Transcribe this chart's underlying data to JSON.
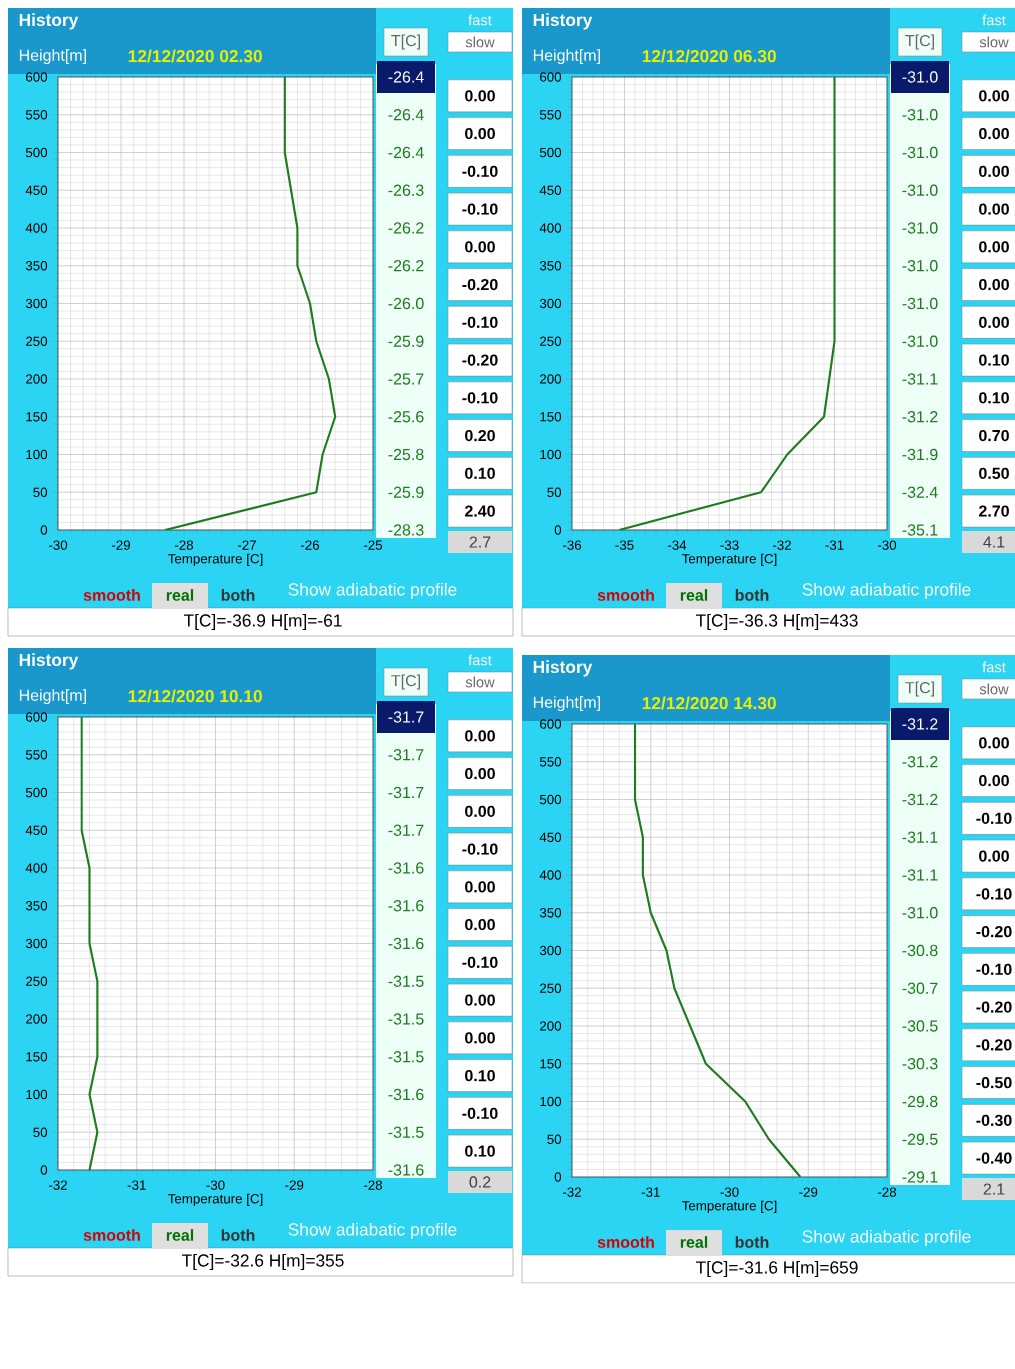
{
  "chart_data": [
    {
      "type": "line",
      "title": "History",
      "subtitle": "12/12/2020 02.30",
      "xlabel": "Temperature [C]",
      "ylabel": "Height[m]",
      "xlim": [
        -30,
        -25
      ],
      "ylim": [
        0,
        600
      ],
      "xticks": [
        -30,
        -29,
        -28,
        -27,
        -26,
        -25
      ],
      "yticks": [
        0,
        50,
        100,
        150,
        200,
        250,
        300,
        350,
        400,
        450,
        500,
        550,
        600
      ],
      "grid": true,
      "series": [
        {
          "color": "#1e7b1e",
          "x": [
            -28.3,
            -25.9,
            -25.8,
            -25.6,
            -25.7,
            -25.9,
            -26.0,
            -26.2,
            -26.2,
            -26.3,
            -26.4,
            -26.4,
            -26.4
          ],
          "values": [
            0,
            50,
            100,
            150,
            200,
            250,
            300,
            350,
            400,
            450,
            500,
            550,
            600
          ]
        }
      ],
      "annotations": [
        "T[C]",
        "fast",
        "slow",
        "0.00",
        "0.00",
        "-0.10",
        "-0.10",
        "0.00",
        "-0.20",
        "-0.10",
        "-0.20",
        "-0.10",
        "0.20",
        "0.10",
        "2.40",
        "2.7",
        "smooth",
        "real",
        "both",
        "Show adiabatic profile",
        "T[C]=-36.9 H[m]=-61",
        "-26.4",
        "-26.4",
        "-26.4",
        "-26.3",
        "-26.2",
        "-26.2",
        "-26.0",
        "-25.9",
        "-25.7",
        "-25.6",
        "-25.8",
        "-25.9",
        "-28.3"
      ]
    },
    {
      "type": "line",
      "title": "History",
      "subtitle": "12/12/2020 06.30",
      "xlabel": "Temperature [C]",
      "ylabel": "Height[m]",
      "xlim": [
        -36,
        -30
      ],
      "ylim": [
        0,
        600
      ],
      "xticks": [
        -36,
        -35,
        -34,
        -33,
        -32,
        -31,
        -30
      ],
      "yticks": [
        0,
        50,
        100,
        150,
        200,
        250,
        300,
        350,
        400,
        450,
        500,
        550,
        600
      ],
      "grid": true,
      "series": [
        {
          "color": "#1e7b1e",
          "x": [
            -35.1,
            -32.4,
            -31.9,
            -31.2,
            -31.1,
            -31.0,
            -31.0,
            -31.0,
            -31.0,
            -31.0,
            -31.0,
            -31.0,
            -31.0
          ],
          "values": [
            0,
            50,
            100,
            150,
            200,
            250,
            300,
            350,
            400,
            450,
            500,
            550,
            600
          ]
        }
      ],
      "annotations": [
        "T[C]",
        "fast",
        "slow",
        "0.00",
        "0.00",
        "0.00",
        "0.00",
        "0.00",
        "0.00",
        "0.00",
        "0.10",
        "0.10",
        "0.70",
        "0.50",
        "2.70",
        "4.1",
        "smooth",
        "real",
        "both",
        "Show adiabatic profile",
        "T[C]=-36.3 H[m]=433",
        "-31.0",
        "-31.0",
        "-31.0",
        "-31.0",
        "-31.0",
        "-31.0",
        "-31.0",
        "-31.0",
        "-31.1",
        "-31.2",
        "-31.9",
        "-32.4",
        "-35.1"
      ]
    },
    {
      "type": "line",
      "title": "History",
      "subtitle": "12/12/2020 10.10",
      "xlabel": "Temperature [C]",
      "ylabel": "Height[m]",
      "xlim": [
        -32,
        -28
      ],
      "ylim": [
        0,
        600
      ],
      "xticks": [
        -32,
        -31,
        -30,
        -29,
        -28
      ],
      "yticks": [
        0,
        50,
        100,
        150,
        200,
        250,
        300,
        350,
        400,
        450,
        500,
        550,
        600
      ],
      "grid": true,
      "series": [
        {
          "color": "#1e7b1e",
          "x": [
            -31.6,
            -31.5,
            -31.6,
            -31.5,
            -31.5,
            -31.5,
            -31.6,
            -31.6,
            -31.6,
            -31.7,
            -31.7,
            -31.7,
            -31.7
          ],
          "values": [
            0,
            50,
            100,
            150,
            200,
            250,
            300,
            350,
            400,
            450,
            500,
            550,
            600
          ]
        }
      ],
      "annotations": [
        "T[C]",
        "fast",
        "slow",
        "0.00",
        "0.00",
        "0.00",
        "-0.10",
        "0.00",
        "0.00",
        "-0.10",
        "0.00",
        "0.00",
        "0.10",
        "-0.10",
        "0.10",
        "0.2",
        "smooth",
        "real",
        "both",
        "Show adiabatic profile",
        "T[C]=-32.6 H[m]=355",
        "-31.7",
        "-31.7",
        "-31.7",
        "-31.7",
        "-31.6",
        "-31.6",
        "-31.6",
        "-31.5",
        "-31.5",
        "-31.5",
        "-31.6",
        "-31.5",
        "-31.6"
      ]
    },
    {
      "type": "line",
      "title": "History",
      "subtitle": "12/12/2020 14.30",
      "xlabel": "Temperature [C]",
      "ylabel": "Height[m]",
      "xlim": [
        -32,
        -28
      ],
      "ylim": [
        0,
        600
      ],
      "xticks": [
        -32,
        -31,
        -30,
        -29,
        -28
      ],
      "yticks": [
        0,
        50,
        100,
        150,
        200,
        250,
        300,
        350,
        400,
        450,
        500,
        550,
        600
      ],
      "grid": true,
      "series": [
        {
          "color": "#1e7b1e",
          "x": [
            -29.1,
            -29.5,
            -29.8,
            -30.3,
            -30.5,
            -30.7,
            -30.8,
            -31.0,
            -31.1,
            -31.1,
            -31.2,
            -31.2
          ],
          "values": [
            0,
            50,
            100,
            150,
            200,
            250,
            300,
            350,
            400,
            450,
            500,
            600
          ]
        }
      ],
      "annotations": [
        "T[C]",
        "fast",
        "slow",
        "0.00",
        "0.00",
        "-0.10",
        "0.00",
        "-0.10",
        "-0.20",
        "-0.10",
        "-0.20",
        "-0.20",
        "-0.50",
        "-0.30",
        "-0.40",
        "2.1",
        "smooth",
        "real",
        "both",
        "Show adiabatic profile",
        "T[C]=-31.6 H[m]=659",
        "-31.2",
        "-31.2",
        "-31.2",
        "-31.1",
        "-31.1",
        "-31.0",
        "-30.8",
        "-30.7",
        "-30.5",
        "-30.3",
        "-29.8",
        "-29.5",
        "-29.1"
      ]
    }
  ]
}
